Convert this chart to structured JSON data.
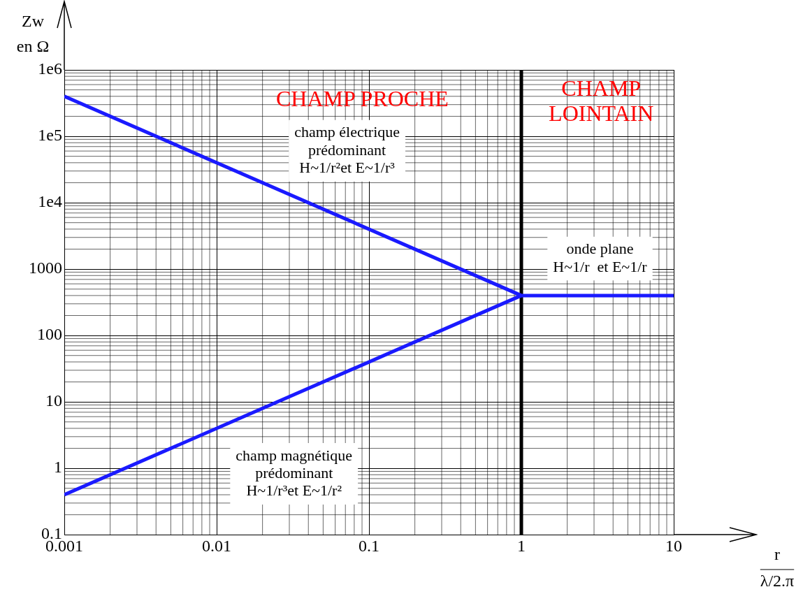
{
  "chart_data": {
    "type": "line",
    "xlabel": "r\nλ/2.π",
    "ylabel": "Zw\nen Ω",
    "log": "xy",
    "grid": true,
    "marker": "none",
    "line_style": "solid",
    "xlim": [
      0.001,
      10
    ],
    "xticks": [
      0.001,
      0.01,
      0.1,
      1,
      10
    ],
    "ylim": [
      0.1,
      1000000
    ],
    "yticks": [
      {
        "value": 0.1,
        "label": "0.1"
      },
      {
        "value": 1,
        "label": "1"
      },
      {
        "value": 10,
        "label": "10"
      },
      {
        "value": 100,
        "label": "100"
      },
      {
        "value": 1000,
        "label": "1000"
      },
      {
        "value": 10000,
        "label": "1e4"
      },
      {
        "value": 100000,
        "label": "1e5"
      },
      {
        "value": 1000000,
        "label": "1e6"
      }
    ],
    "series": [
      {
        "color": "#1a1aff",
        "x": [
          0.001,
          1,
          10
        ],
        "values": [
          400000,
          400,
          400
        ]
      },
      {
        "color": "#1a1aff",
        "x": [
          0.001,
          1
        ],
        "values": [
          0.4,
          400
        ]
      }
    ],
    "ref_lines": [
      {
        "axis": "x",
        "value": 1,
        "color": "#000000"
      }
    ],
    "annotations": [
      "CHAMP PROCHE",
      "CHAMP\nLOINTAIN",
      "champ électrique\nprédominant\nH~1/r²et E~1/r³",
      "onde plane\nH~1/r  et E~1/r",
      "champ magnétique\nprédominant\nH~1/r³et E~1/r²"
    ]
  }
}
